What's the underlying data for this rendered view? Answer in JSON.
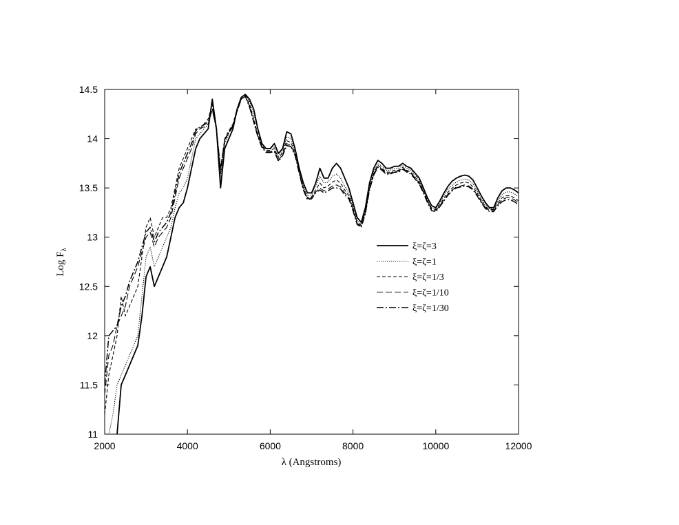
{
  "chart_data": {
    "type": "line",
    "title": "",
    "xlabel": "λ (Angstroms)",
    "ylabel_main": "Log F",
    "ylabel_sub": "λ",
    "xlim": [
      2000,
      12000
    ],
    "ylim": [
      11,
      14.5
    ],
    "xticks": [
      2000,
      4000,
      6000,
      8000,
      10000,
      12000
    ],
    "yticks": [
      11,
      11.5,
      12,
      12.5,
      13,
      13.5,
      14,
      14.5
    ],
    "ytick_labels": [
      "11",
      "11.5",
      "12",
      "12.5",
      "13",
      "13.5",
      "14",
      "14.5"
    ],
    "grid": false,
    "legend_position": "center-right",
    "x": [
      2000,
      2100,
      2200,
      2300,
      2400,
      2500,
      2600,
      2700,
      2800,
      2900,
      3000,
      3100,
      3200,
      3300,
      3400,
      3500,
      3600,
      3700,
      3800,
      3900,
      4000,
      4100,
      4200,
      4300,
      4400,
      4500,
      4600,
      4700,
      4800,
      4900,
      5000,
      5100,
      5200,
      5300,
      5400,
      5500,
      5600,
      5700,
      5800,
      5900,
      6000,
      6100,
      6200,
      6300,
      6400,
      6500,
      6600,
      6700,
      6800,
      6900,
      7000,
      7100,
      7200,
      7300,
      7400,
      7500,
      7600,
      7700,
      7800,
      7900,
      8000,
      8100,
      8200,
      8300,
      8400,
      8500,
      8600,
      8700,
      8800,
      8900,
      9000,
      9100,
      9200,
      9300,
      9400,
      9500,
      9600,
      9700,
      9800,
      9900,
      10000,
      10100,
      10200,
      10300,
      10400,
      10500,
      10600,
      10700,
      10800,
      10900,
      11000,
      11100,
      11200,
      11300,
      11400,
      11500,
      11600,
      11700,
      11800,
      11900,
      12000
    ],
    "series": [
      {
        "name": "ξ=ζ=3",
        "dash": "",
        "width": 1.8,
        "values": [
          10.8,
          10.8,
          10.9,
          11.0,
          11.5,
          11.6,
          11.7,
          11.8,
          11.9,
          12.2,
          12.6,
          12.7,
          12.5,
          12.6,
          12.7,
          12.8,
          13.0,
          13.2,
          13.3,
          13.35,
          13.5,
          13.7,
          13.9,
          14.0,
          14.05,
          14.1,
          14.4,
          14.1,
          13.5,
          13.9,
          14.0,
          14.1,
          14.3,
          14.42,
          14.45,
          14.4,
          14.3,
          14.1,
          13.95,
          13.9,
          13.9,
          13.95,
          13.85,
          13.9,
          14.07,
          14.05,
          13.9,
          13.7,
          13.55,
          13.45,
          13.45,
          13.55,
          13.7,
          13.6,
          13.6,
          13.7,
          13.75,
          13.7,
          13.6,
          13.5,
          13.35,
          13.2,
          13.15,
          13.3,
          13.55,
          13.7,
          13.78,
          13.75,
          13.7,
          13.7,
          13.72,
          13.72,
          13.75,
          13.72,
          13.7,
          13.65,
          13.6,
          13.5,
          13.4,
          13.32,
          13.3,
          13.37,
          13.45,
          13.52,
          13.57,
          13.6,
          13.62,
          13.63,
          13.62,
          13.58,
          13.5,
          13.42,
          13.35,
          13.3,
          13.3,
          13.4,
          13.47,
          13.5,
          13.5,
          13.48,
          13.45
        ]
      },
      {
        "name": "ξ=ζ=1",
        "dash": "1.2 1.8",
        "width": 1.1,
        "values": [
          10.9,
          11.0,
          11.2,
          11.5,
          11.6,
          11.7,
          11.8,
          11.9,
          12.0,
          12.4,
          12.8,
          12.9,
          12.7,
          12.8,
          12.9,
          13.0,
          13.1,
          13.3,
          13.45,
          13.5,
          13.6,
          13.8,
          14.0,
          14.05,
          14.1,
          14.15,
          14.4,
          14.1,
          13.6,
          13.95,
          14.05,
          14.15,
          14.3,
          14.42,
          14.45,
          14.38,
          14.25,
          14.1,
          13.95,
          13.9,
          13.9,
          13.92,
          13.82,
          13.88,
          14.02,
          14.0,
          13.88,
          13.68,
          13.52,
          13.42,
          13.43,
          13.52,
          13.62,
          13.55,
          13.56,
          13.62,
          13.64,
          13.6,
          13.52,
          13.45,
          13.32,
          13.17,
          13.13,
          13.28,
          13.52,
          13.67,
          13.75,
          13.72,
          13.68,
          13.68,
          13.7,
          13.7,
          13.73,
          13.7,
          13.68,
          13.63,
          13.58,
          13.48,
          13.38,
          13.3,
          13.29,
          13.35,
          13.43,
          13.49,
          13.53,
          13.56,
          13.58,
          13.59,
          13.58,
          13.54,
          13.47,
          13.39,
          13.33,
          13.29,
          13.29,
          13.37,
          13.43,
          13.46,
          13.46,
          13.44,
          13.41
        ]
      },
      {
        "name": "ξ=ζ=1/3",
        "dash": "5 3",
        "width": 1.1,
        "values": [
          11.2,
          11.6,
          11.8,
          12.0,
          12.4,
          12.2,
          12.3,
          12.4,
          12.5,
          12.8,
          13.1,
          13.2,
          13.0,
          13.1,
          13.2,
          13.2,
          13.3,
          13.5,
          13.7,
          13.8,
          13.9,
          14.0,
          14.1,
          14.1,
          14.15,
          14.2,
          14.35,
          14.1,
          13.7,
          14.0,
          14.08,
          14.15,
          14.3,
          14.4,
          14.44,
          14.35,
          14.2,
          14.05,
          13.93,
          13.88,
          13.88,
          13.9,
          13.8,
          13.86,
          13.98,
          13.96,
          13.86,
          13.67,
          13.5,
          13.4,
          13.41,
          13.48,
          13.55,
          13.5,
          13.52,
          13.56,
          13.58,
          13.55,
          13.48,
          13.42,
          13.3,
          13.15,
          13.12,
          13.26,
          13.5,
          13.65,
          13.73,
          13.7,
          13.66,
          13.66,
          13.68,
          13.68,
          13.71,
          13.68,
          13.66,
          13.61,
          13.56,
          13.47,
          13.37,
          13.29,
          13.28,
          13.33,
          13.4,
          13.46,
          13.5,
          13.53,
          13.55,
          13.56,
          13.55,
          13.51,
          13.45,
          13.37,
          13.31,
          13.28,
          13.28,
          13.35,
          13.4,
          13.42,
          13.42,
          13.4,
          13.37
        ]
      },
      {
        "name": "ξ=ζ=1/10",
        "dash": "9 4",
        "width": 1.1,
        "values": [
          11.4,
          11.8,
          11.9,
          12.1,
          12.2,
          12.3,
          12.5,
          12.6,
          12.7,
          12.85,
          13.0,
          13.05,
          12.9,
          13.0,
          13.05,
          13.1,
          13.2,
          13.4,
          13.6,
          13.7,
          13.8,
          13.9,
          14.05,
          14.1,
          14.12,
          14.15,
          14.3,
          14.1,
          13.65,
          13.98,
          14.06,
          14.12,
          14.28,
          14.4,
          14.43,
          14.33,
          14.18,
          14.03,
          13.92,
          13.87,
          13.87,
          13.88,
          13.78,
          13.84,
          13.95,
          13.93,
          13.84,
          13.66,
          13.49,
          13.39,
          13.4,
          13.46,
          13.5,
          13.47,
          13.49,
          13.52,
          13.53,
          13.51,
          13.45,
          13.4,
          13.28,
          13.14,
          13.11,
          13.25,
          13.49,
          13.64,
          13.72,
          13.69,
          13.65,
          13.65,
          13.67,
          13.67,
          13.7,
          13.67,
          13.65,
          13.6,
          13.55,
          13.46,
          13.36,
          13.28,
          13.27,
          13.32,
          13.38,
          13.44,
          13.48,
          13.51,
          13.52,
          13.53,
          13.52,
          13.49,
          13.43,
          13.36,
          13.3,
          13.27,
          13.27,
          13.33,
          13.38,
          13.4,
          13.4,
          13.38,
          13.35
        ]
      },
      {
        "name": "ξ=ζ=1/30",
        "dash": "10 3 2 3",
        "width": 1.5,
        "values": [
          11.5,
          12.0,
          12.05,
          12.1,
          12.3,
          12.4,
          12.55,
          12.65,
          12.75,
          12.9,
          13.05,
          13.1,
          12.95,
          13.05,
          13.1,
          13.15,
          13.25,
          13.45,
          13.65,
          13.75,
          13.85,
          13.95,
          14.08,
          14.12,
          14.14,
          14.17,
          14.3,
          14.1,
          13.68,
          13.99,
          14.07,
          14.13,
          14.28,
          14.4,
          14.43,
          14.32,
          14.17,
          14.02,
          13.91,
          13.86,
          13.86,
          13.87,
          13.77,
          13.83,
          13.93,
          13.92,
          13.83,
          13.65,
          13.48,
          13.38,
          13.39,
          13.45,
          13.48,
          13.45,
          13.47,
          13.5,
          13.5,
          13.49,
          13.43,
          13.39,
          13.27,
          13.13,
          13.1,
          13.24,
          13.48,
          13.63,
          13.71,
          13.68,
          13.64,
          13.64,
          13.66,
          13.66,
          13.69,
          13.66,
          13.64,
          13.59,
          13.54,
          13.45,
          13.35,
          13.27,
          13.26,
          13.31,
          13.37,
          13.43,
          13.47,
          13.5,
          13.51,
          13.52,
          13.51,
          13.48,
          13.42,
          13.35,
          13.29,
          13.26,
          13.26,
          13.32,
          13.36,
          13.38,
          13.38,
          13.36,
          13.33
        ]
      }
    ]
  }
}
